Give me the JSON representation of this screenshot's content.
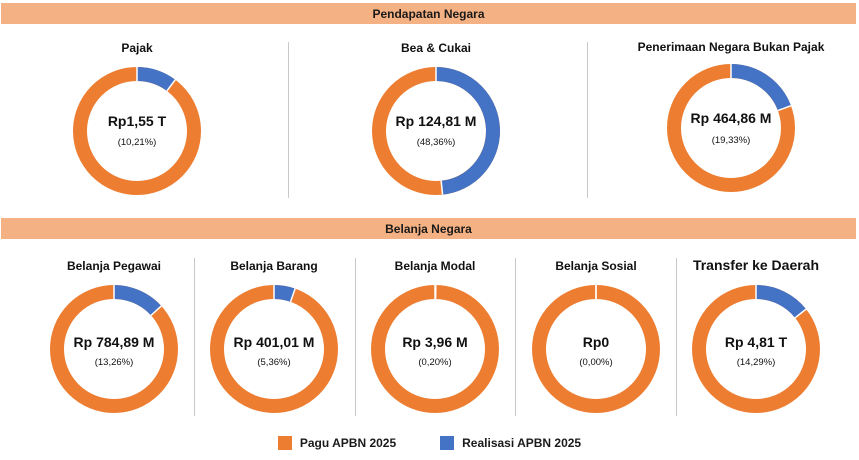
{
  "colors": {
    "pagu": "#ed7d31",
    "realisasi": "#4472c4",
    "band": "#f4b183"
  },
  "sections": {
    "pendapatan": "Pendapatan Negara",
    "belanja": "Belanja Negara"
  },
  "legend": {
    "pagu_label": "Pagu APBN 2025",
    "realisasi_label": "Realisasi APBN 2025"
  },
  "chart_data": [
    {
      "type": "pie",
      "group": "Pendapatan Negara",
      "title": "Pajak",
      "center_value": "Rp1,55 T",
      "percent_label": "(10,21%)",
      "categories": [
        "Pagu APBN 2025",
        "Realisasi APBN 2025"
      ],
      "realisasi_pct": 10.21
    },
    {
      "type": "pie",
      "group": "Pendapatan Negara",
      "title": "Bea & Cukai",
      "center_value": "Rp 124,81 M",
      "percent_label": "(48,36%)",
      "categories": [
        "Pagu APBN 2025",
        "Realisasi APBN 2025"
      ],
      "realisasi_pct": 48.36
    },
    {
      "type": "pie",
      "group": "Pendapatan Negara",
      "title": "Penerimaan Negara Bukan Pajak",
      "center_value": "Rp 464,86 M",
      "percent_label": "(19,33%)",
      "categories": [
        "Pagu APBN 2025",
        "Realisasi APBN 2025"
      ],
      "realisasi_pct": 19.33
    },
    {
      "type": "pie",
      "group": "Belanja Negara",
      "title": "Belanja Pegawai",
      "center_value": "Rp 784,89 M",
      "percent_label": "(13,26%)",
      "categories": [
        "Pagu APBN 2025",
        "Realisasi APBN 2025"
      ],
      "realisasi_pct": 13.26
    },
    {
      "type": "pie",
      "group": "Belanja Negara",
      "title": "Belanja Barang",
      "center_value": "Rp 401,01 M",
      "percent_label": "(5,36%)",
      "categories": [
        "Pagu APBN 2025",
        "Realisasi APBN 2025"
      ],
      "realisasi_pct": 5.36
    },
    {
      "type": "pie",
      "group": "Belanja Negara",
      "title": "Belanja Modal",
      "center_value": "Rp 3,96 M",
      "percent_label": "(0,20%)",
      "categories": [
        "Pagu APBN 2025",
        "Realisasi APBN 2025"
      ],
      "realisasi_pct": 0.2
    },
    {
      "type": "pie",
      "group": "Belanja Negara",
      "title": "Belanja Sosial",
      "center_value": "Rp0",
      "percent_label": "(0,00%)",
      "categories": [
        "Pagu APBN 2025",
        "Realisasi APBN 2025"
      ],
      "realisasi_pct": 0.0
    },
    {
      "type": "pie",
      "group": "Belanja Negara",
      "title": "Transfer ke Daerah",
      "center_value": "Rp 4,81 T",
      "percent_label": "(14,29%)",
      "categories": [
        "Pagu APBN 2025",
        "Realisasi APBN 2025"
      ],
      "realisasi_pct": 14.29
    }
  ]
}
